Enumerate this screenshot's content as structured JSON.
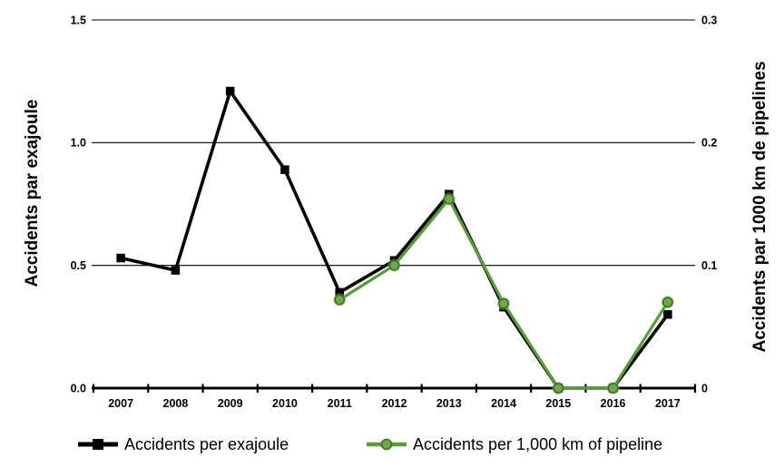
{
  "chart_data": {
    "type": "line",
    "x": [
      "2007",
      "2008",
      "2009",
      "2010",
      "2011",
      "2012",
      "2013",
      "2014",
      "2015",
      "2016",
      "2017"
    ],
    "series": [
      {
        "name": "Accidents per exajoule",
        "axis": "left",
        "marker": "square",
        "color": "#000000",
        "values": [
          0.53,
          0.48,
          1.21,
          0.89,
          0.39,
          0.52,
          0.79,
          0.33,
          0,
          0,
          0.3
        ]
      },
      {
        "name": "Accidents per 1,000 km of pipeline",
        "axis": "right",
        "marker": "circle",
        "color": "#5a9b3c",
        "marker_fill": "#6eaa4b",
        "marker_stroke": "#3c6e1e",
        "marker_halo": "#8cbf69",
        "values": [
          null,
          null,
          null,
          null,
          0.072,
          0.1,
          0.154,
          0.069,
          0,
          0,
          0.07
        ]
      }
    ],
    "left_axis": {
      "label": "Accidents par exajoule",
      "ticks": [
        "0.0",
        "0.5",
        "1.0",
        "1.5"
      ],
      "range": [
        0,
        1.5
      ]
    },
    "right_axis": {
      "label": "Accidents par 1000 km de pipelines",
      "ticks": [
        "0",
        "0.1",
        "0.2",
        "0.3"
      ],
      "range": [
        0,
        0.3
      ]
    },
    "legend_position": "bottom",
    "grid": "horizontal",
    "axis_color": "#000000"
  }
}
